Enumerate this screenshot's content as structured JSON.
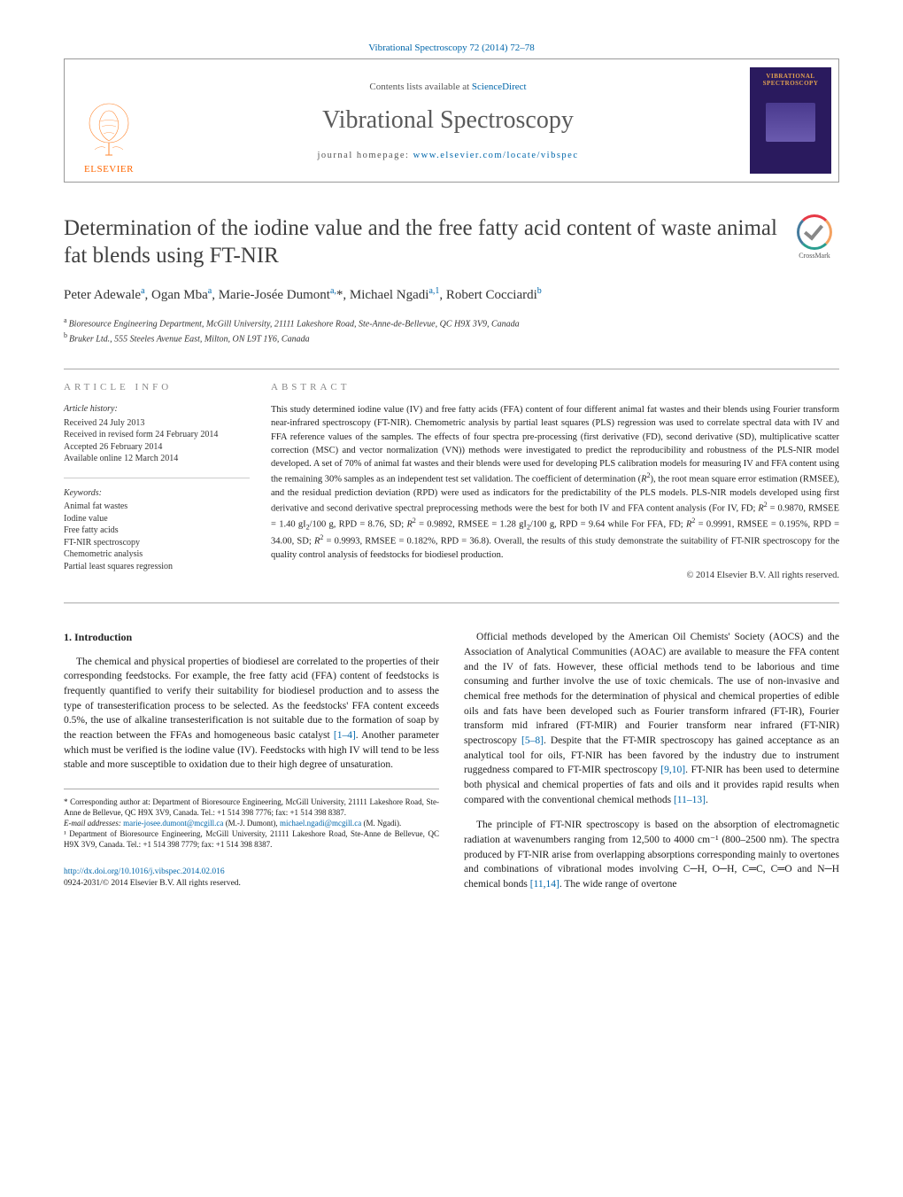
{
  "citation_top": "Vibrational Spectroscopy 72 (2014) 72–78",
  "header": {
    "contents_prefix": "Contents lists available at ",
    "contents_link": "ScienceDirect",
    "journal_name": "Vibrational Spectroscopy",
    "homepage_prefix": "journal homepage: ",
    "homepage_url": "www.elsevier.com/locate/vibspec",
    "publisher": "ELSEVIER",
    "cover_label": "VIBRATIONAL SPECTROSCOPY"
  },
  "article": {
    "title": "Determination of the iodine value and the free fatty acid content of waste animal fat blends using FT-NIR",
    "crossmark": "CrossMark",
    "authors_html": "Peter Adewale<sup class='aff-sup'>a</sup>, Ogan Mba<sup class='aff-sup'>a</sup>, Marie-Josée Dumont<sup class='aff-sup'>a,</sup>*, Michael Ngadi<sup class='aff-sup'>a,1</sup>, Robert Cocciardi<sup class='aff-sup'>b</sup>",
    "affiliations": [
      {
        "letter": "a",
        "text": "Bioresource Engineering Department, McGill University, 21111 Lakeshore Road, Ste-Anne-de-Bellevue, QC H9X 3V9, Canada"
      },
      {
        "letter": "b",
        "text": "Bruker Ltd., 555 Steeles Avenue East, Milton, ON L9T 1Y6, Canada"
      }
    ]
  },
  "info": {
    "header": "article info",
    "history_head": "Article history:",
    "history": [
      "Received 24 July 2013",
      "Received in revised form 24 February 2014",
      "Accepted 26 February 2014",
      "Available online 12 March 2014"
    ],
    "keywords_head": "Keywords:",
    "keywords": [
      "Animal fat wastes",
      "Iodine value",
      "Free fatty acids",
      "FT-NIR spectroscopy",
      "Chemometric analysis",
      "Partial least squares regression"
    ]
  },
  "abstract": {
    "header": "abstract",
    "text": "This study determined iodine value (IV) and free fatty acids (FFA) content of four different animal fat wastes and their blends using Fourier transform near-infrared spectroscopy (FT-NIR). Chemometric analysis by partial least squares (PLS) regression was used to correlate spectral data with IV and FFA reference values of the samples. The effects of four spectra pre-processing (first derivative (FD), second derivative (SD), multiplicative scatter correction (MSC) and vector normalization (VN)) methods were investigated to predict the reproducibility and robustness of the PLS-NIR model developed. A set of 70% of animal fat wastes and their blends were used for developing PLS calibration models for measuring IV and FFA content using the remaining 30% samples as an independent test set validation. The coefficient of determination (R²), the root mean square error estimation (RMSEE), and the residual prediction deviation (RPD) were used as indicators for the predictability of the PLS models. PLS-NIR models developed using first derivative and second derivative spectral preprocessing methods were the best for both IV and FFA content analysis (For IV, FD; R² = 0.9870, RMSEE = 1.40 gI₂/100 g, RPD = 8.76, SD; R² = 0.9892, RMSEE = 1.28 gI₂/100 g, RPD = 9.64 while For FFA, FD; R² = 0.9991, RMSEE = 0.195%, RPD = 34.00, SD; R² = 0.9993, RMSEE = 0.182%, RPD = 36.8). Overall, the results of this study demonstrate the suitability of FT-NIR spectroscopy for the quality control analysis of feedstocks for biodiesel production.",
    "copyright": "© 2014 Elsevier B.V. All rights reserved."
  },
  "intro": {
    "head": "1. Introduction",
    "p1": "The chemical and physical properties of biodiesel are correlated to the properties of their corresponding feedstocks. For example, the free fatty acid (FFA) content of feedstocks is frequently quantified to verify their suitability for biodiesel production and to assess the type of transesterification process to be selected. As the feedstocks' FFA content exceeds 0.5%, the use of alkaline transesterification is not suitable due to the formation of soap by the reaction between the FFAs and homogeneous basic catalyst ",
    "p1_cite": "[1–4]",
    "p1b": ". Another parameter which must be verified is the iodine value (IV). Feedstocks with high IV will tend to be less stable and more susceptible to oxidation due to their high degree of unsaturation.",
    "p2": "Official methods developed by the American Oil Chemists' Society (AOCS) and the Association of Analytical Communities (AOAC) are available to measure the FFA content and the IV of fats. However, these official methods tend to be laborious and time consuming and further involve the use of toxic chemicals. The use of non-invasive and chemical free methods for the determination of physical and chemical properties of edible oils and fats have been developed such as Fourier transform infrared (FT-IR), Fourier transform mid infrared (FT-MIR) and Fourier transform near infrared (FT-NIR) spectroscopy ",
    "p2_cite1": "[5–8]",
    "p2b": ". Despite that the FT-MIR spectroscopy has gained acceptance as an analytical tool for oils, FT-NIR has been favored by the industry due to instrument ruggedness compared to FT-MIR spectroscopy ",
    "p2_cite2": "[9,10]",
    "p2c": ". FT-NIR has been used to determine both physical and chemical properties of fats and oils and it provides rapid results when compared with the conventional chemical methods ",
    "p2_cite3": "[11–13]",
    "p2d": ".",
    "p3": "The principle of FT-NIR spectroscopy is based on the absorption of electromagnetic radiation at wavenumbers ranging from 12,500 to 4000 cm⁻¹ (800–2500 nm). The spectra produced by FT-NIR arise from overlapping absorptions corresponding mainly to overtones and combinations of vibrational modes involving C─H, O─H, C═C, C═O and N─H chemical bonds ",
    "p3_cite": "[11,14]",
    "p3b": ". The wide range of overtone"
  },
  "footnotes": {
    "corr": "* Corresponding author at: Department of Bioresource Engineering, McGill University, 21111 Lakeshore Road, Ste-Anne de Bellevue, QC H9X 3V9, Canada. Tel.: +1 514 398 7776; fax: +1 514 398 8387.",
    "emails_label": "E-mail addresses: ",
    "email1": "marie-josee.dumont@mcgill.ca",
    "email1_name": " (M.-J. Dumont), ",
    "email2": "michael.ngadi@mcgill.ca",
    "email2_name": " (M. Ngadi).",
    "note1": "¹ Department of Bioresource Engineering, McGill University, 21111 Lakeshore Road, Ste-Anne de Bellevue, QC H9X 3V9, Canada. Tel.: +1 514 398 7779; fax: +1 514 398 8387."
  },
  "doi": {
    "url": "http://dx.doi.org/10.1016/j.vibspec.2014.02.016",
    "copyright_line": "0924-2031/© 2014 Elsevier B.V. All rights reserved."
  }
}
